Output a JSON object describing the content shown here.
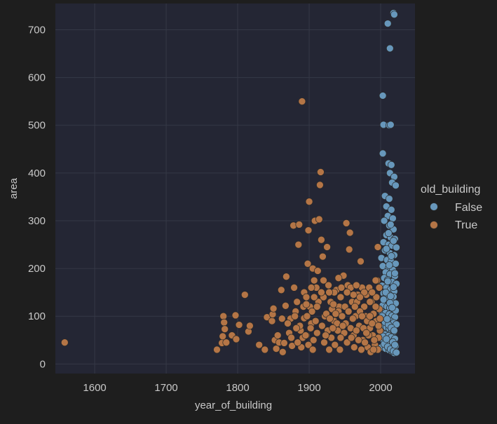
{
  "chart_data": {
    "type": "scatter",
    "xlabel": "year_of_building",
    "ylabel": "area",
    "xlim": [
      1545,
      2048
    ],
    "ylim": [
      -20,
      755
    ],
    "x_ticks": [
      "1600",
      "1700",
      "1800",
      "1900",
      "2000"
    ],
    "y_ticks": [
      "0",
      "100",
      "200",
      "300",
      "400",
      "500",
      "600",
      "700"
    ],
    "grid": true,
    "legend": {
      "title": "old_building",
      "placement": "right",
      "entries": [
        "False",
        "True"
      ]
    },
    "colors": {
      "page_background": "#1e1e1e",
      "plot_background": "#242634",
      "grid": "#353846",
      "text": "#c9c9c9",
      "False": "#6797bb",
      "True": "#b47546",
      "marker_edge": "#2a2a2a"
    },
    "series": [
      {
        "name": "False",
        "points": [
          [
            2018,
            735
          ],
          [
            2019,
            732
          ],
          [
            2010,
            713
          ],
          [
            2013,
            661
          ],
          [
            2003,
            562
          ],
          [
            2004,
            501
          ],
          [
            2012,
            500
          ],
          [
            2014,
            501
          ],
          [
            2003,
            441
          ],
          [
            2011,
            420
          ],
          [
            2015,
            417
          ],
          [
            2013,
            400
          ],
          [
            2019,
            392
          ],
          [
            2016,
            380
          ],
          [
            2021,
            374
          ],
          [
            2006,
            352
          ],
          [
            2012,
            346
          ],
          [
            2008,
            330
          ],
          [
            2015,
            323
          ],
          [
            2010,
            310
          ],
          [
            2017,
            305
          ],
          [
            2005,
            300
          ],
          [
            2012,
            290
          ],
          [
            2018,
            282
          ],
          [
            2008,
            270
          ],
          [
            2014,
            265
          ],
          [
            2020,
            262
          ],
          [
            2004,
            255
          ],
          [
            2011,
            250
          ],
          [
            2016,
            248
          ],
          [
            2022,
            244
          ],
          [
            2006,
            238
          ],
          [
            2013,
            232
          ],
          [
            2019,
            228
          ],
          [
            2001,
            222
          ],
          [
            2009,
            218
          ],
          [
            2015,
            214
          ],
          [
            2021,
            210
          ],
          [
            2003,
            205
          ],
          [
            2011,
            200
          ],
          [
            2017,
            197
          ],
          [
            2007,
            192
          ],
          [
            2013,
            188
          ],
          [
            2020,
            184
          ],
          [
            2005,
            180
          ],
          [
            2010,
            176
          ],
          [
            2016,
            172
          ],
          [
            2022,
            168
          ],
          [
            2002,
            164
          ],
          [
            2008,
            160
          ],
          [
            2014,
            156
          ],
          [
            2019,
            152
          ],
          [
            2004,
            148
          ],
          [
            2012,
            145
          ],
          [
            2018,
            141
          ],
          [
            2006,
            138
          ],
          [
            2011,
            134
          ],
          [
            2015,
            130
          ],
          [
            2021,
            127
          ],
          [
            2003,
            123
          ],
          [
            2009,
            120
          ],
          [
            2013,
            117
          ],
          [
            2017,
            114
          ],
          [
            2001,
            110
          ],
          [
            2007,
            107
          ],
          [
            2012,
            104
          ],
          [
            2016,
            101
          ],
          [
            2020,
            98
          ],
          [
            2005,
            95
          ],
          [
            2010,
            92
          ],
          [
            2014,
            89
          ],
          [
            2018,
            86
          ],
          [
            2022,
            83
          ],
          [
            2003,
            80
          ],
          [
            2008,
            77
          ],
          [
            2012,
            74
          ],
          [
            2016,
            71
          ],
          [
            2019,
            68
          ],
          [
            2002,
            65
          ],
          [
            2006,
            62
          ],
          [
            2011,
            59
          ],
          [
            2015,
            56
          ],
          [
            2020,
            53
          ],
          [
            2004,
            50
          ],
          [
            2009,
            47
          ],
          [
            2013,
            44
          ],
          [
            2017,
            41
          ],
          [
            2021,
            38
          ],
          [
            2001,
            35
          ],
          [
            2007,
            32
          ],
          [
            2012,
            29
          ],
          [
            2016,
            26
          ],
          [
            2019,
            23
          ],
          [
            2005,
            42
          ],
          [
            2010,
            36
          ],
          [
            2014,
            31
          ],
          [
            2018,
            27
          ],
          [
            2022,
            24
          ],
          [
            2003,
            58
          ],
          [
            2008,
            52
          ],
          [
            2017,
            46
          ],
          [
            2020,
            40
          ],
          [
            2006,
            88
          ],
          [
            2011,
            82
          ],
          [
            2015,
            76
          ],
          [
            2019,
            70
          ],
          [
            2002,
            100
          ],
          [
            2009,
            94
          ],
          [
            2013,
            128
          ],
          [
            2021,
            112
          ],
          [
            2004,
            135
          ],
          [
            2016,
            118
          ],
          [
            2007,
            150
          ],
          [
            2014,
            142
          ],
          [
            2018,
            161
          ],
          [
            2010,
            173
          ],
          [
            2020,
            190
          ],
          [
            2012,
            207
          ],
          [
            2015,
            226
          ],
          [
            2008,
            241
          ],
          [
            2018,
            258
          ],
          [
            2011,
            274
          ],
          [
            2014,
            292
          ]
        ]
      },
      {
        "name": "True",
        "points": [
          [
            1558,
            45
          ],
          [
            1771,
            30
          ],
          [
            1778,
            44
          ],
          [
            1779,
            58
          ],
          [
            1780,
            100
          ],
          [
            1781,
            87
          ],
          [
            1782,
            73
          ],
          [
            1784,
            45
          ],
          [
            1792,
            60
          ],
          [
            1797,
            102
          ],
          [
            1798,
            52
          ],
          [
            1802,
            82
          ],
          [
            1810,
            145
          ],
          [
            1815,
            68
          ],
          [
            1817,
            80
          ],
          [
            1830,
            40
          ],
          [
            1838,
            30
          ],
          [
            1841,
            98
          ],
          [
            1848,
            90
          ],
          [
            1849,
            104
          ],
          [
            1850,
            116
          ],
          [
            1852,
            50
          ],
          [
            1854,
            32
          ],
          [
            1858,
            45
          ],
          [
            1861,
            155
          ],
          [
            1863,
            25
          ],
          [
            1865,
            44
          ],
          [
            1867,
            122
          ],
          [
            1868,
            183
          ],
          [
            1872,
            65
          ],
          [
            1874,
            95
          ],
          [
            1876,
            38
          ],
          [
            1878,
            290
          ],
          [
            1879,
            160
          ],
          [
            1881,
            110
          ],
          [
            1883,
            130
          ],
          [
            1885,
            250
          ],
          [
            1886,
            292
          ],
          [
            1888,
            70
          ],
          [
            1890,
            550
          ],
          [
            1891,
            55
          ],
          [
            1893,
            150
          ],
          [
            1896,
            140
          ],
          [
            1898,
            210
          ],
          [
            1899,
            280
          ],
          [
            1900,
            340
          ],
          [
            1901,
            120
          ],
          [
            1903,
            85
          ],
          [
            1905,
            200
          ],
          [
            1907,
            175
          ],
          [
            1908,
            300
          ],
          [
            1910,
            160
          ],
          [
            1912,
            195
          ],
          [
            1914,
            303
          ],
          [
            1915,
            375
          ],
          [
            1916,
            402
          ],
          [
            1917,
            260
          ],
          [
            1919,
            225
          ],
          [
            1920,
            140
          ],
          [
            1922,
            100
          ],
          [
            1925,
            245
          ],
          [
            1927,
            165
          ],
          [
            1930,
            130
          ],
          [
            1932,
            115
          ],
          [
            1935,
            90
          ],
          [
            1938,
            155
          ],
          [
            1940,
            70
          ],
          [
            1942,
            120
          ],
          [
            1945,
            160
          ],
          [
            1948,
            185
          ],
          [
            1950,
            120
          ],
          [
            1952,
            295
          ],
          [
            1954,
            165
          ],
          [
            1956,
            240
          ],
          [
            1957,
            275
          ],
          [
            1960,
            130
          ],
          [
            1962,
            60
          ],
          [
            1965,
            100
          ],
          [
            1968,
            145
          ],
          [
            1970,
            80
          ],
          [
            1972,
            215
          ],
          [
            1974,
            160
          ],
          [
            1975,
            50
          ],
          [
            1977,
            120
          ],
          [
            1979,
            100
          ],
          [
            1980,
            145
          ],
          [
            1982,
            35
          ],
          [
            1984,
            160
          ],
          [
            1985,
            75
          ],
          [
            1987,
            130
          ],
          [
            1989,
            60
          ],
          [
            1990,
            105
          ],
          [
            1992,
            40
          ],
          [
            1994,
            90
          ],
          [
            1995,
            175
          ],
          [
            1996,
            245
          ],
          [
            1997,
            55
          ],
          [
            1998,
            115
          ],
          [
            1999,
            70
          ],
          [
            1893,
            96
          ],
          [
            1896,
            60
          ],
          [
            1899,
            40
          ],
          [
            1902,
            75
          ],
          [
            1904,
            110
          ],
          [
            1906,
            50
          ],
          [
            1909,
            90
          ],
          [
            1911,
            65
          ],
          [
            1913,
            130
          ],
          [
            1918,
            80
          ],
          [
            1921,
            45
          ],
          [
            1924,
            105
          ],
          [
            1926,
            70
          ],
          [
            1929,
            95
          ],
          [
            1931,
            55
          ],
          [
            1934,
            125
          ],
          [
            1936,
            40
          ],
          [
            1939,
            85
          ],
          [
            1941,
            110
          ],
          [
            1943,
            30
          ],
          [
            1946,
            100
          ],
          [
            1949,
            65
          ],
          [
            1951,
            85
          ],
          [
            1953,
            45
          ],
          [
            1955,
            110
          ],
          [
            1958,
            75
          ],
          [
            1961,
            95
          ],
          [
            1963,
            35
          ],
          [
            1966,
            70
          ],
          [
            1967,
            130
          ],
          [
            1969,
            50
          ],
          [
            1971,
            110
          ],
          [
            1973,
            30
          ],
          [
            1976,
            75
          ],
          [
            1978,
            45
          ],
          [
            1981,
            90
          ],
          [
            1983,
            60
          ],
          [
            1986,
            25
          ],
          [
            1988,
            85
          ],
          [
            1991,
            50
          ],
          [
            1993,
            120
          ],
          [
            1996,
            30
          ],
          [
            1999,
            95
          ],
          [
            1887,
            80
          ],
          [
            1889,
            35
          ],
          [
            1892,
            120
          ],
          [
            1895,
            60
          ],
          [
            1897,
            100
          ],
          [
            1905,
            30
          ],
          [
            1923,
            60
          ],
          [
            1928,
            30
          ],
          [
            1933,
            75
          ],
          [
            1937,
            105
          ],
          [
            1944,
            55
          ],
          [
            1947,
            80
          ],
          [
            1959,
            55
          ],
          [
            1964,
            120
          ],
          [
            1974,
            100
          ],
          [
            1980,
            65
          ],
          [
            1985,
            100
          ],
          [
            1990,
            30
          ],
          [
            1994,
            140
          ],
          [
            1997,
            80
          ],
          [
            1875,
            55
          ],
          [
            1870,
            85
          ],
          [
            1880,
            100
          ],
          [
            1882,
            75
          ],
          [
            1884,
            45
          ],
          [
            1862,
            95
          ],
          [
            1856,
            60
          ],
          [
            1935,
            150
          ],
          [
            1944,
            140
          ],
          [
            1958,
            160
          ],
          [
            1966,
            165
          ],
          [
            1977,
            150
          ],
          [
            1988,
            150
          ],
          [
            1993,
            175
          ],
          [
            1998,
            160
          ],
          [
            1920,
            175
          ],
          [
            1928,
            150
          ],
          [
            1907,
            140
          ],
          [
            1917,
            150
          ],
          [
            1896,
            125
          ],
          [
            1903,
            160
          ],
          [
            1911,
            120
          ],
          [
            1985,
            130
          ],
          [
            1971,
            140
          ],
          [
            1962,
            145
          ],
          [
            1953,
            150
          ],
          [
            1941,
            180
          ]
        ]
      }
    ]
  }
}
